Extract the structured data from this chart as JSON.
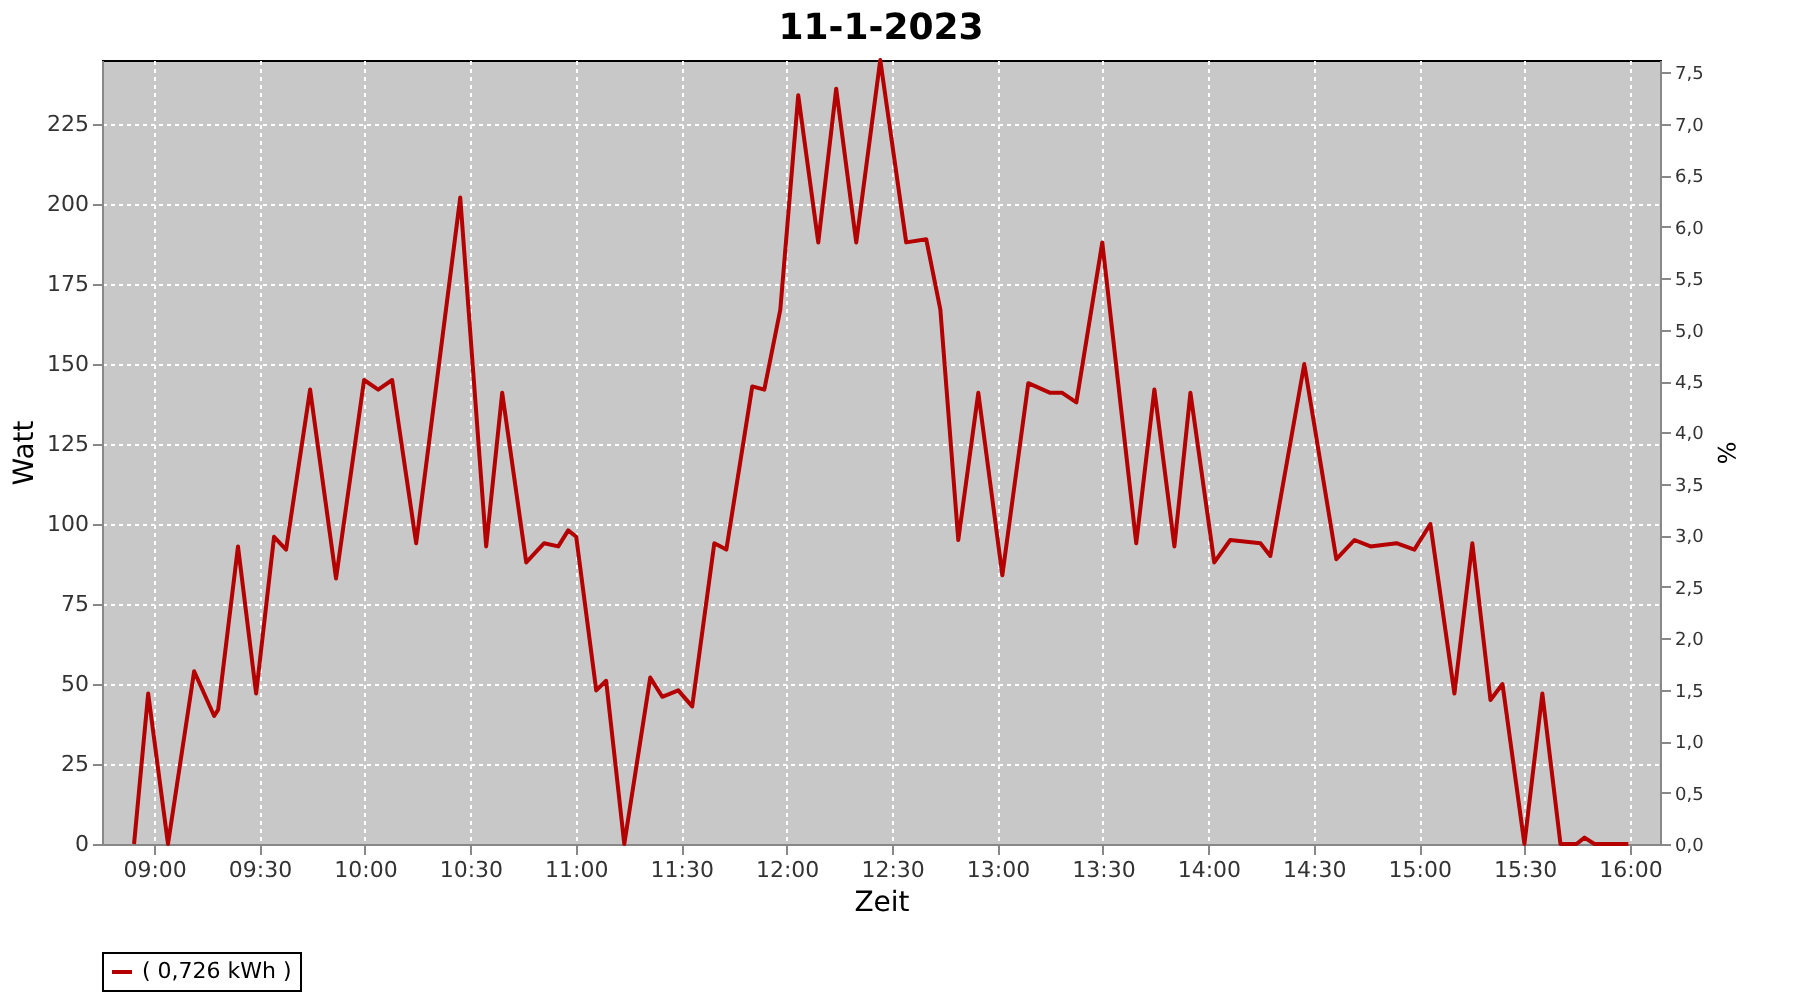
{
  "chart_data": {
    "type": "line",
    "title": "11-1-2023",
    "xlabel": "Zeit",
    "ylabel": "Watt",
    "y2label": "%",
    "x": [
      8.905,
      8.972,
      9.066,
      9.19,
      9.285,
      9.304,
      9.398,
      9.484,
      9.569,
      9.626,
      9.74,
      9.863,
      9.996,
      10.063,
      10.129,
      10.243,
      10.452,
      10.575,
      10.651,
      10.765,
      10.85,
      10.917,
      10.964,
      11.002,
      11.097,
      11.144,
      11.23,
      11.353,
      11.41,
      11.486,
      11.552,
      11.657,
      11.714,
      11.837,
      11.894,
      11.97,
      12.055,
      12.15,
      12.235,
      12.33,
      12.444,
      12.567,
      12.662,
      12.729,
      12.814,
      12.909,
      13.023,
      13.146,
      13.25,
      13.307,
      13.374,
      13.497,
      13.658,
      13.744,
      13.839,
      13.915,
      14.028,
      14.104,
      14.247,
      14.294,
      14.455,
      14.607,
      14.693,
      14.769,
      14.892,
      14.977,
      15.053,
      15.167,
      15.252,
      15.338,
      15.395,
      15.499,
      15.584,
      15.67,
      15.746,
      15.784,
      15.831,
      15.992
    ],
    "series": [
      {
        "name": "( 0,726 kWh )",
        "color": "#b40000",
        "values": [
          0,
          47,
          0,
          54,
          40,
          42,
          93,
          47,
          96,
          92,
          142,
          83,
          145,
          142,
          145,
          94,
          202,
          93,
          141,
          88,
          94,
          93,
          98,
          96,
          48,
          51,
          0,
          52,
          46,
          48,
          43,
          94,
          92,
          143,
          142,
          167,
          234,
          188,
          236,
          188,
          245,
          188,
          189,
          167,
          95,
          141,
          84,
          144,
          141,
          141,
          138,
          188,
          94,
          142,
          93,
          141,
          88,
          95,
          94,
          90,
          150,
          89,
          95,
          93,
          94,
          92,
          100,
          47,
          94,
          45,
          50,
          0,
          47,
          0,
          0,
          2,
          0,
          0
        ]
      }
    ],
    "xlim": [
      8.753,
      16.142
    ],
    "xticks": [
      {
        "value": 9,
        "label": "09:00"
      },
      {
        "value": 9.5,
        "label": "09:30"
      },
      {
        "value": 10,
        "label": "10:00"
      },
      {
        "value": 10.5,
        "label": "10:30"
      },
      {
        "value": 11,
        "label": "11:00"
      },
      {
        "value": 11.5,
        "label": "11:30"
      },
      {
        "value": 12,
        "label": "12:00"
      },
      {
        "value": 12.5,
        "label": "12:30"
      },
      {
        "value": 13,
        "label": "13:00"
      },
      {
        "value": 13.5,
        "label": "13:30"
      },
      {
        "value": 14,
        "label": "14:00"
      },
      {
        "value": 14.5,
        "label": "14:30"
      },
      {
        "value": 15,
        "label": "15:00"
      },
      {
        "value": 15.5,
        "label": "15:30"
      },
      {
        "value": 16,
        "label": "16:00"
      }
    ],
    "ylim": [
      0,
      245
    ],
    "yticks": [
      0,
      25,
      50,
      75,
      100,
      125,
      150,
      175,
      200,
      225
    ],
    "y2lim": [
      0,
      7.62
    ],
    "y2ticks": [
      {
        "value": 0,
        "label": "0,0"
      },
      {
        "value": 0.5,
        "label": "0,5"
      },
      {
        "value": 1,
        "label": "1,0"
      },
      {
        "value": 1.5,
        "label": "1,5"
      },
      {
        "value": 2,
        "label": "2,0"
      },
      {
        "value": 2.5,
        "label": "2,5"
      },
      {
        "value": 3,
        "label": "3,0"
      },
      {
        "value": 3.5,
        "label": "3,5"
      },
      {
        "value": 4,
        "label": "4,0"
      },
      {
        "value": 4.5,
        "label": "4,5"
      },
      {
        "value": 5,
        "label": "5,0"
      },
      {
        "value": 5.5,
        "label": "5,5"
      },
      {
        "value": 6,
        "label": "6,0"
      },
      {
        "value": 6.5,
        "label": "6,5"
      },
      {
        "value": 7,
        "label": "7,0"
      },
      {
        "value": 7.5,
        "label": "7,5"
      }
    ],
    "grid": true,
    "legend": "bottom",
    "marker": "none",
    "line_style": "solid"
  }
}
